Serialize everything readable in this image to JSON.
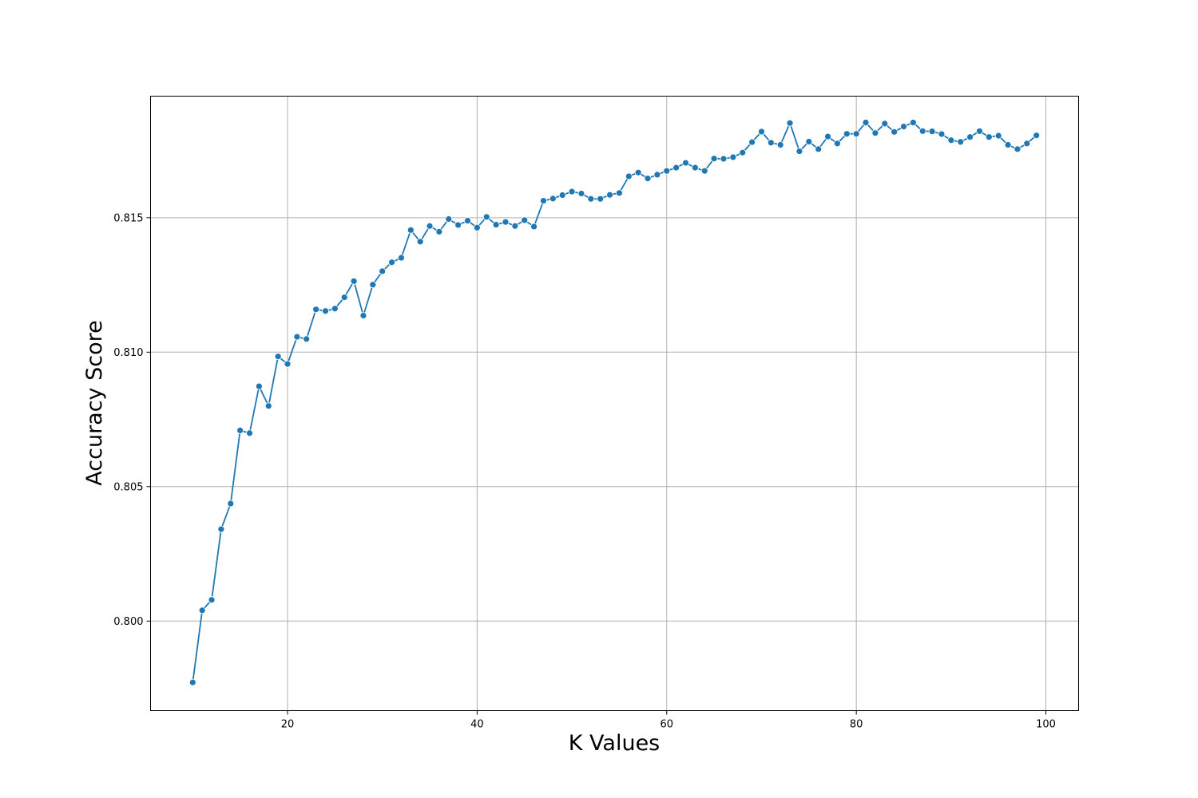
{
  "chart_data": {
    "type": "line",
    "xlabel": "K Values",
    "ylabel": "Accuracy Score",
    "xlim": [
      5.55,
      103.45
    ],
    "ylim": [
      0.79667,
      0.81952
    ],
    "xticks": [
      20,
      40,
      60,
      80,
      100
    ],
    "xtick_labels": [
      "20",
      "40",
      "60",
      "80",
      "100"
    ],
    "yticks": [
      0.8,
      0.805,
      0.81,
      0.815
    ],
    "ytick_labels": [
      "0.800",
      "0.805",
      "0.810",
      "0.815"
    ],
    "grid": true,
    "marker": "circle",
    "series_color": "#1f77b4",
    "series": [
      {
        "x": [
          10,
          11,
          12,
          13,
          14,
          15,
          16,
          17,
          18,
          19,
          20,
          21,
          22,
          23,
          24,
          25,
          26,
          27,
          28,
          29,
          30,
          31,
          32,
          33,
          34,
          35,
          36,
          37,
          38,
          39,
          40,
          41,
          42,
          43,
          44,
          45,
          46,
          47,
          48,
          49,
          50,
          51,
          52,
          53,
          54,
          55,
          56,
          57,
          58,
          59,
          60,
          61,
          62,
          63,
          64,
          65,
          66,
          67,
          68,
          69,
          70,
          71,
          72,
          73,
          74,
          75,
          76,
          77,
          78,
          79,
          80,
          81,
          82,
          83,
          84,
          85,
          86,
          87,
          88,
          89,
          90,
          91,
          92,
          93,
          94,
          95,
          96,
          97,
          98,
          99
        ],
        "y": [
          0.79772,
          0.8004,
          0.80079,
          0.80342,
          0.80437,
          0.80709,
          0.80699,
          0.80873,
          0.808,
          0.80984,
          0.80956,
          0.81057,
          0.81049,
          0.81159,
          0.81153,
          0.81162,
          0.81204,
          0.81264,
          0.81136,
          0.81251,
          0.81301,
          0.81334,
          0.81351,
          0.81454,
          0.81411,
          0.81469,
          0.81448,
          0.81495,
          0.81473,
          0.81489,
          0.81463,
          0.81503,
          0.81474,
          0.81484,
          0.81469,
          0.81491,
          0.81467,
          0.81563,
          0.81571,
          0.81584,
          0.81597,
          0.8159,
          0.8157,
          0.8157,
          0.81585,
          0.81592,
          0.81654,
          0.81668,
          0.81646,
          0.8166,
          0.81674,
          0.81686,
          0.81704,
          0.81686,
          0.81674,
          0.8172,
          0.81719,
          0.81725,
          0.81742,
          0.81781,
          0.8182,
          0.81779,
          0.81771,
          0.81852,
          0.81747,
          0.81783,
          0.81755,
          0.81802,
          0.81776,
          0.81812,
          0.81812,
          0.81854,
          0.81815,
          0.8185,
          0.81819,
          0.81839,
          0.81854,
          0.81822,
          0.81821,
          0.81811,
          0.81788,
          0.81782,
          0.818,
          0.81822,
          0.818,
          0.81805,
          0.81771,
          0.81755,
          0.81776,
          0.81806
        ]
      }
    ]
  }
}
